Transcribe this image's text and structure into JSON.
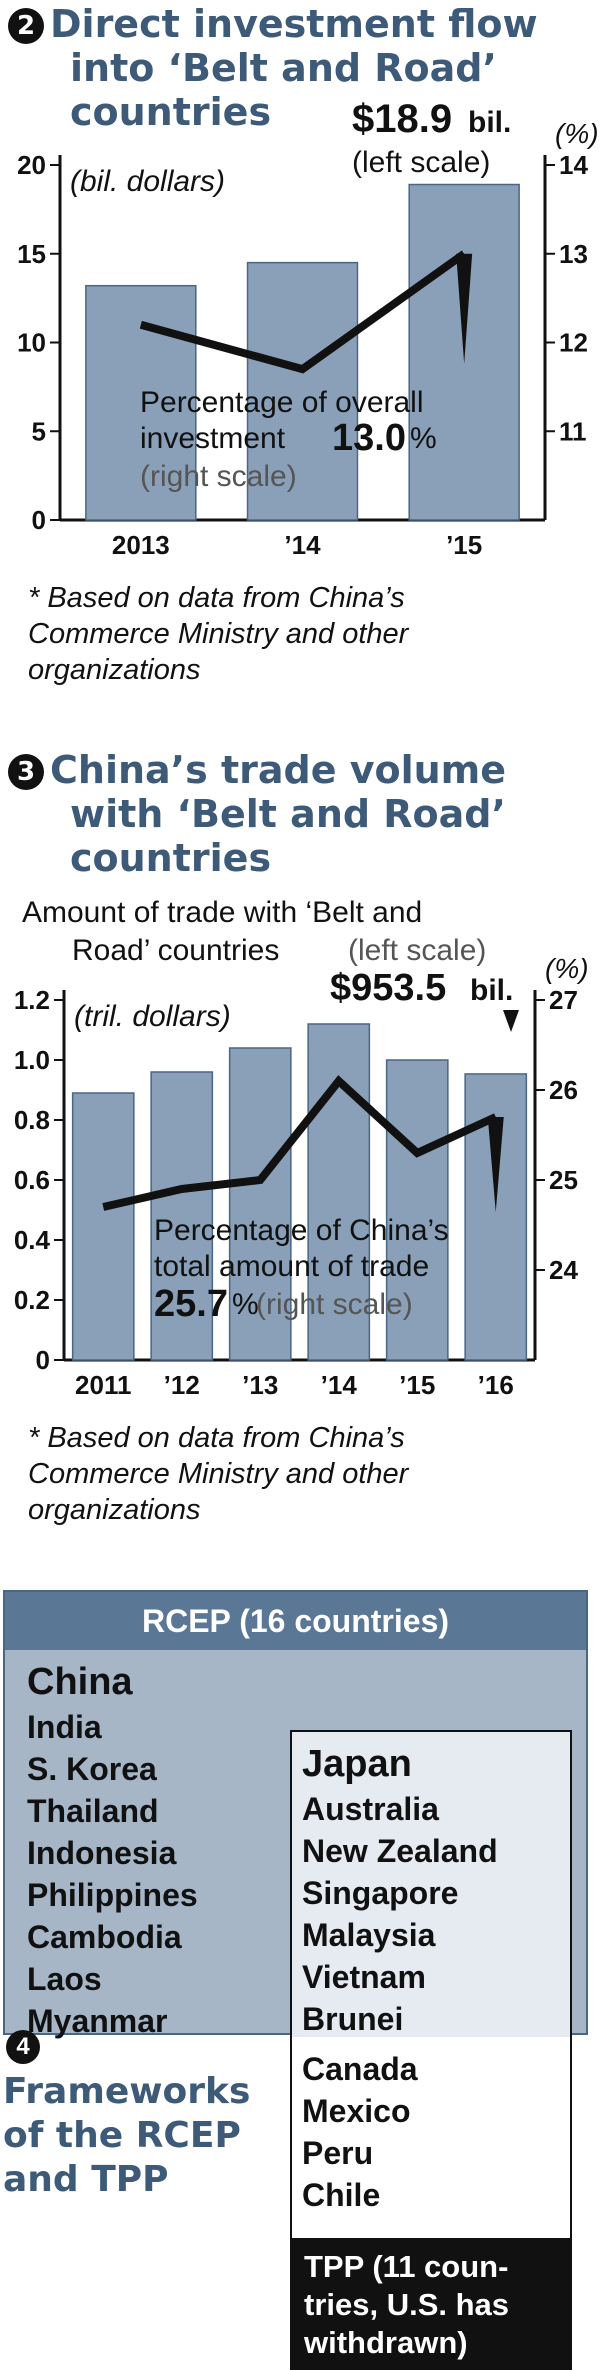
{
  "section2": {
    "num": "2",
    "title_line1": "Direct investment flow",
    "title_line2": "into ‘Belt and Road’",
    "title_line3": "countries",
    "note_line1": "* Based on data from China’s",
    "note_line2": "Commerce Ministry and other",
    "note_line3": "organizations"
  },
  "section3": {
    "num": "3",
    "title_line1": "China’s trade volume",
    "title_line2": "with ‘Belt and Road’",
    "title_line3": "countries",
    "note_line1": "* Based on data from China’s",
    "note_line2": "Commerce Ministry and other",
    "note_line3": "organizations"
  },
  "chart_data": [
    {
      "type": "bar",
      "categories": [
        "2013",
        "’14",
        "’15"
      ],
      "series": [
        {
          "name": "",
          "values": [
            13.2,
            14.5,
            18.9
          ],
          "axis": "left"
        },
        {
          "name": "",
          "type": "line",
          "values": [
            12.2,
            11.7,
            13.0
          ],
          "axis": "right"
        }
      ],
      "left_axis": {
        "unit": "(bil. dollars)",
        "ylim": [
          0,
          20
        ],
        "ticks": [
          "0",
          "5",
          "10",
          "15",
          "20"
        ]
      },
      "right_axis": {
        "unit": "(%)",
        "ylim": [
          10,
          14
        ],
        "ticks": [
          "11",
          "12",
          "13",
          "14"
        ]
      },
      "callout_bar": {
        "value": "$18.9",
        "unit": "bil.",
        "scale": "(left scale)"
      },
      "callout_line": {
        "line1": "Percentage of overall",
        "line2": "investment",
        "value": "13.0",
        "pct": "%",
        "scale": "(right scale)"
      },
      "colors": {
        "bar": "#8aa0b8",
        "bar_edge": "#4a6685",
        "line": "#111111"
      }
    },
    {
      "type": "bar",
      "categories": [
        "2011",
        "’12",
        "’13",
        "’14",
        "’15",
        "’16"
      ],
      "series": [
        {
          "name": "",
          "values": [
            0.89,
            0.96,
            1.04,
            1.12,
            1.0,
            0.9535
          ],
          "axis": "left"
        },
        {
          "name": "",
          "type": "line",
          "values": [
            24.7,
            24.9,
            25.0,
            26.1,
            25.3,
            25.7
          ],
          "axis": "right"
        }
      ],
      "series_label": {
        "line1": "Amount of trade with ‘Belt and",
        "line2": "Road’ countries",
        "scale": "(left scale)"
      },
      "left_axis": {
        "unit": "(tril. dollars)",
        "ylim": [
          0,
          1.2
        ],
        "ticks": [
          "0",
          "0.2",
          "0.4",
          "0.6",
          "0.8",
          "1.0",
          "1.2"
        ]
      },
      "right_axis": {
        "unit": "(%)",
        "ylim": [
          23,
          27
        ],
        "ticks": [
          "24",
          "25",
          "26",
          "27"
        ]
      },
      "callout_bar": {
        "value": "$953.5",
        "unit": "bil."
      },
      "callout_line": {
        "line1": "Percentage of China’s",
        "line2": "total amount of trade",
        "value": "25.7",
        "pct": "%",
        "scale": "(right scale)"
      },
      "colors": {
        "bar": "#8aa0b8",
        "bar_edge": "#4a6685",
        "line": "#111111"
      }
    }
  ],
  "frameworks": {
    "num": "4",
    "title_line1": "Frameworks",
    "title_line2": "of the RCEP",
    "title_line3": "and TPP",
    "rcep_header": "RCEP (16 countries)",
    "rcep_only": [
      "China",
      "India",
      "S. Korea",
      "Thailand",
      "Indonesia",
      "Philippines",
      "Cambodia",
      "Laos",
      "Myanmar"
    ],
    "both": [
      "Japan",
      "Australia",
      "New Zealand",
      "Singapore",
      "Malaysia",
      "Vietnam",
      "Brunei"
    ],
    "tpp_only": [
      "Canada",
      "Mexico",
      "Peru",
      "Chile"
    ],
    "tpp_line1": "TPP (11 coun-",
    "tpp_line2": "tries, U.S. has",
    "tpp_line3": "withdrawn)",
    "colors": {
      "rcep": "#a6b6c7",
      "rcep_header": "#5a7796",
      "highlight": "#c41a24",
      "tpp_footer": "#111111"
    }
  }
}
